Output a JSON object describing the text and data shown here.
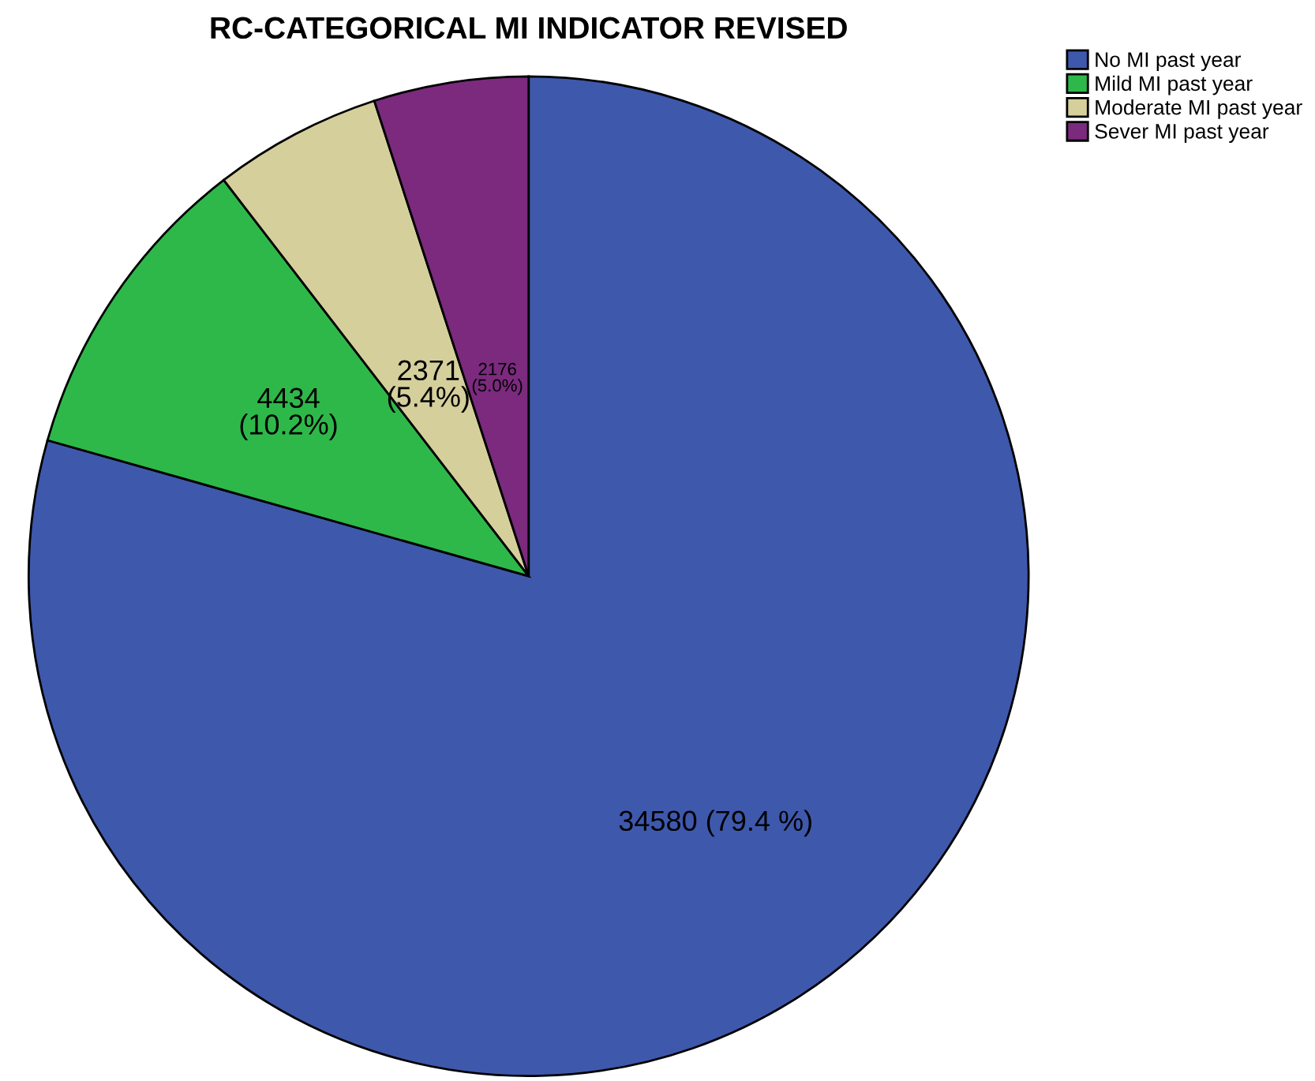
{
  "chart_data": {
    "type": "pie",
    "title": "RC-CATEGORICAL MI INDICATOR REVISED",
    "categories": [
      "No MI past year",
      "Mild MI past year",
      "Moderate MI past year",
      "Sever MI past year"
    ],
    "values": [
      34580,
      4434,
      2371,
      2176
    ],
    "colors": [
      "#3e58ac",
      "#2eb84a",
      "#d5cf9c",
      "#7b2a7e"
    ],
    "value_labels": [
      "34580 (79.4 %)",
      "4434\n(10.2%)",
      "2371\n(5.4%)",
      "2176\n(5.0%)"
    ],
    "legend": "top right"
  }
}
